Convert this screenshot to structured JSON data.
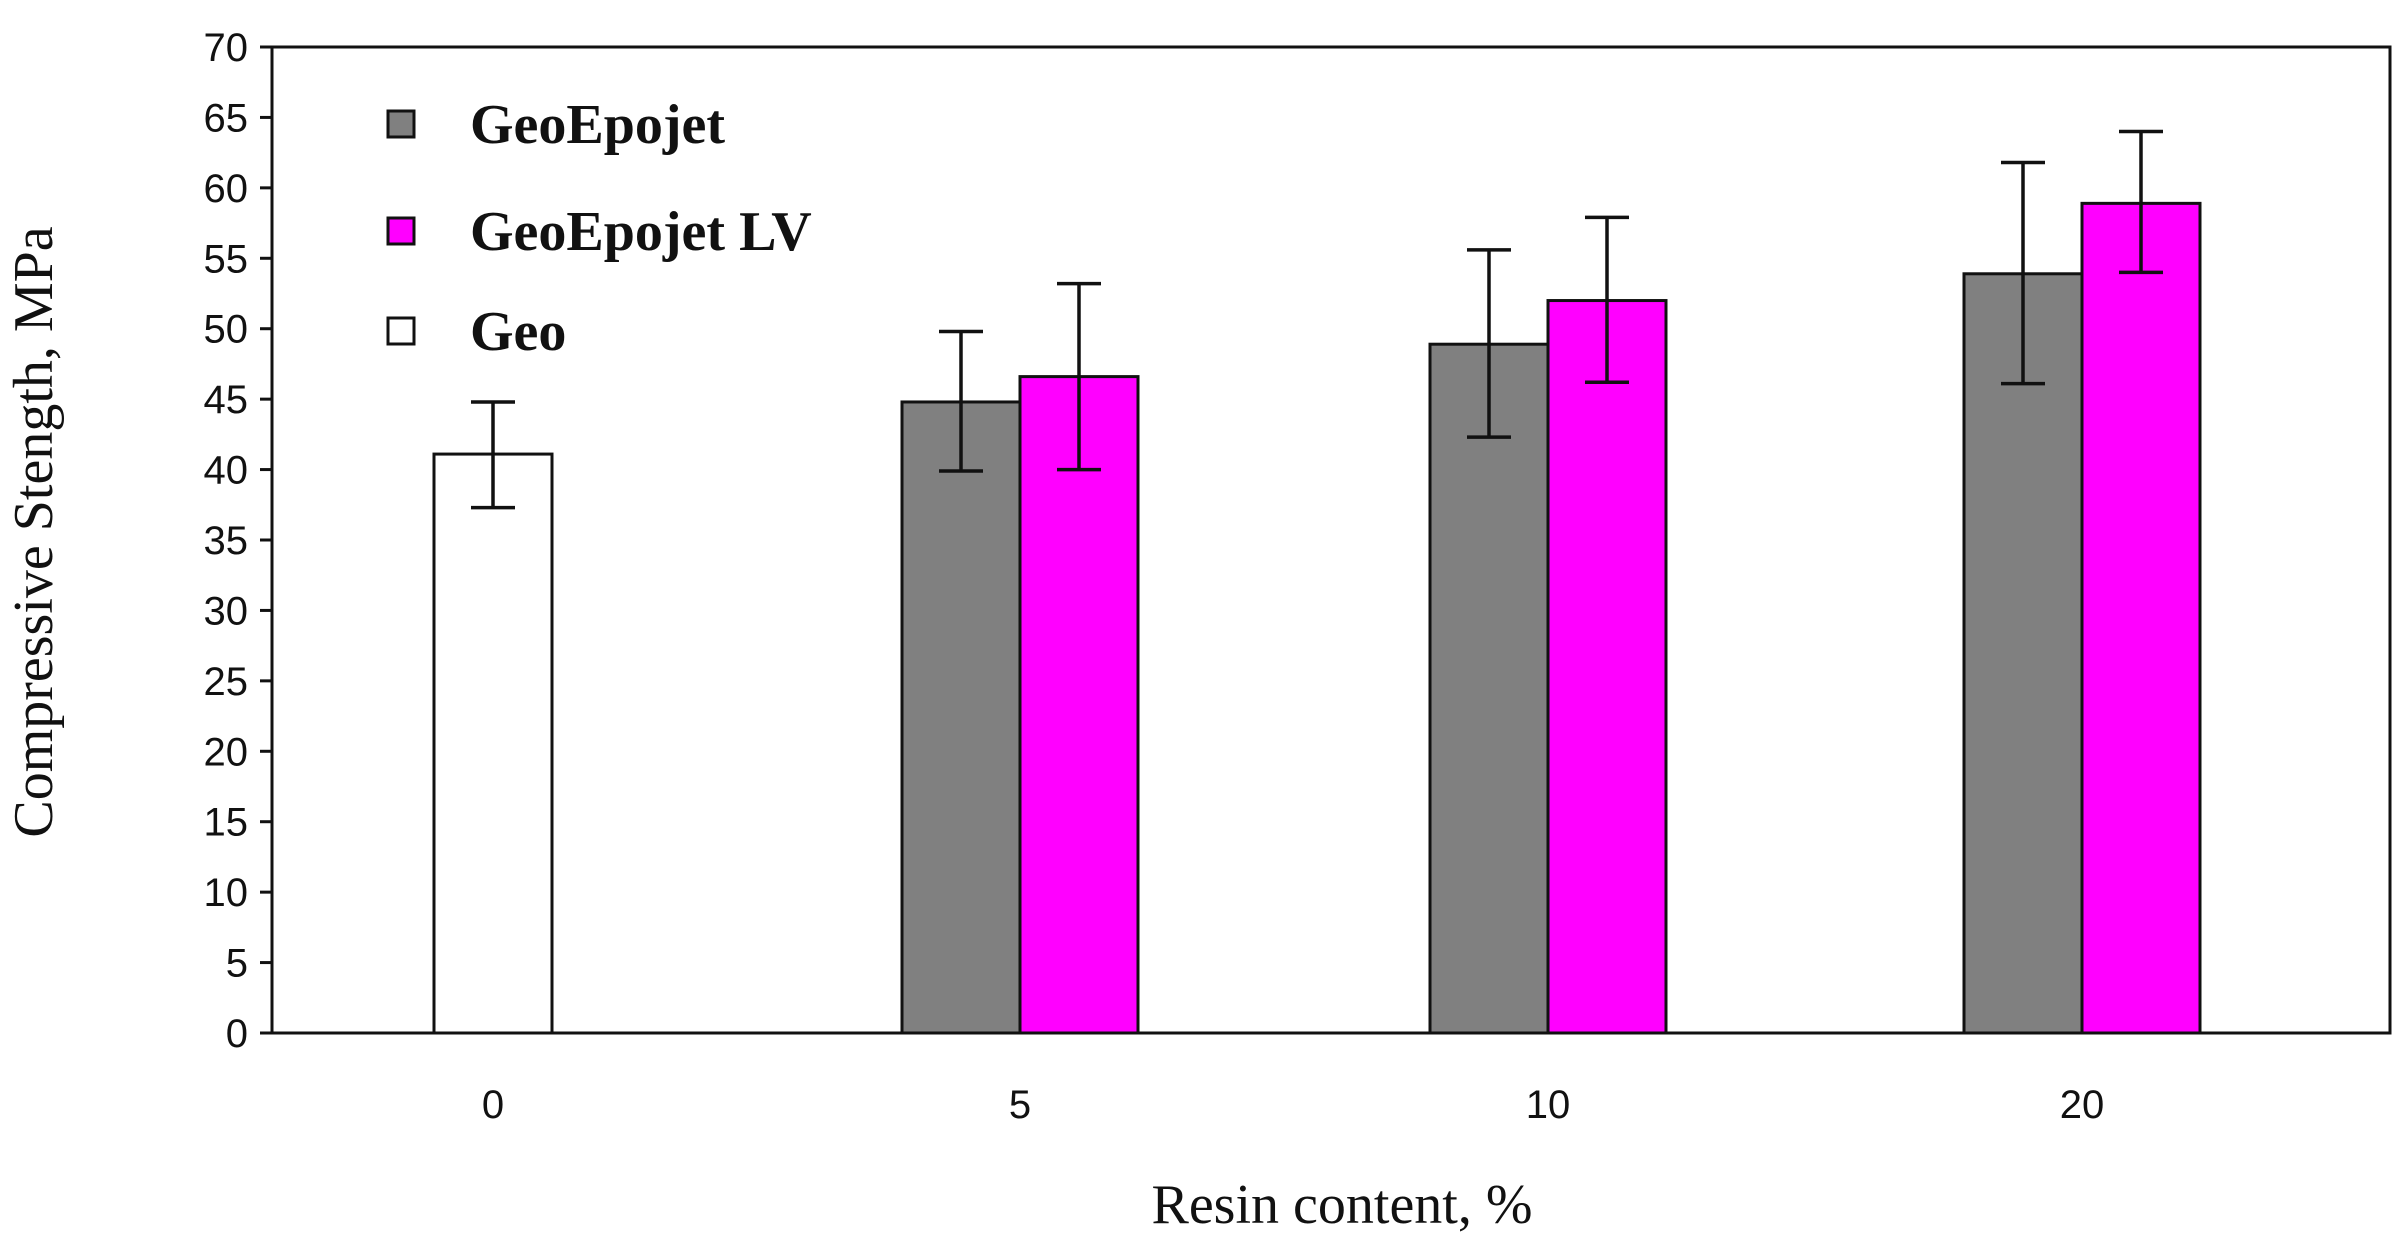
{
  "chart_data": {
    "type": "bar",
    "title": "",
    "xlabel": "Resin content, %",
    "ylabel": "Compressive Stength, MPa",
    "ylim": [
      0,
      70
    ],
    "yticks": [
      0,
      5,
      10,
      15,
      20,
      25,
      30,
      35,
      40,
      45,
      50,
      55,
      60,
      65,
      70
    ],
    "categories": [
      "0",
      "5",
      "10",
      "20"
    ],
    "grid": false,
    "legend_position": "top-left",
    "series": [
      {
        "name": "GeoEpojet",
        "color": "#808080",
        "values": [
          null,
          44.8,
          48.9,
          53.9
        ],
        "error_low": [
          null,
          39.9,
          42.3,
          46.1
        ],
        "error_high": [
          null,
          49.8,
          55.6,
          61.8
        ]
      },
      {
        "name": "GeoEpojet LV",
        "color": "#ff00ff",
        "values": [
          null,
          46.6,
          52.0,
          58.9
        ],
        "error_low": [
          null,
          40.0,
          46.2,
          54.0
        ],
        "error_high": [
          null,
          53.2,
          57.9,
          64.0
        ]
      },
      {
        "name": "Geo",
        "color": "#ffffff",
        "values": [
          41.1,
          null,
          null,
          null
        ],
        "error_low": [
          37.3,
          null,
          null,
          null
        ],
        "error_high": [
          44.8,
          null,
          null,
          null
        ]
      }
    ]
  }
}
